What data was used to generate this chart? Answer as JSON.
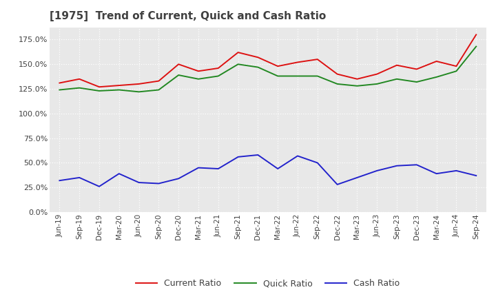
{
  "title": "[1975]  Trend of Current, Quick and Cash Ratio",
  "title_color": "#404040",
  "plot_bg_color": "#e8e8e8",
  "fig_bg_color": "#ffffff",
  "grid_color": "#ffffff",
  "x_labels": [
    "Jun-19",
    "Sep-19",
    "Dec-19",
    "Mar-20",
    "Jun-20",
    "Sep-20",
    "Dec-20",
    "Mar-21",
    "Jun-21",
    "Sep-21",
    "Dec-21",
    "Mar-22",
    "Jun-22",
    "Sep-22",
    "Dec-22",
    "Mar-23",
    "Jun-23",
    "Sep-23",
    "Dec-23",
    "Mar-24",
    "Jun-24",
    "Sep-24"
  ],
  "current_ratio": [
    131.0,
    135.0,
    127.0,
    128.5,
    130.0,
    133.0,
    150.0,
    143.0,
    146.0,
    162.0,
    157.0,
    148.0,
    152.0,
    155.0,
    140.0,
    135.0,
    140.0,
    149.0,
    145.0,
    153.0,
    148.0,
    180.0
  ],
  "quick_ratio": [
    124.0,
    126.0,
    123.0,
    124.0,
    122.0,
    124.0,
    139.0,
    135.0,
    138.0,
    150.0,
    147.0,
    138.0,
    138.0,
    138.0,
    130.0,
    128.0,
    130.0,
    135.0,
    132.0,
    137.0,
    143.0,
    168.0
  ],
  "cash_ratio": [
    32.0,
    35.0,
    26.0,
    39.0,
    30.0,
    29.0,
    34.0,
    45.0,
    44.0,
    56.0,
    58.0,
    44.0,
    57.0,
    50.0,
    28.0,
    35.0,
    42.0,
    47.0,
    48.0,
    39.0,
    42.0,
    37.0
  ],
  "current_color": "#dd1111",
  "quick_color": "#228822",
  "cash_color": "#2222cc",
  "ylim": [
    0,
    187.5
  ],
  "yticks": [
    0.0,
    25.0,
    50.0,
    75.0,
    100.0,
    125.0,
    150.0,
    175.0
  ],
  "legend_labels": [
    "Current Ratio",
    "Quick Ratio",
    "Cash Ratio"
  ]
}
